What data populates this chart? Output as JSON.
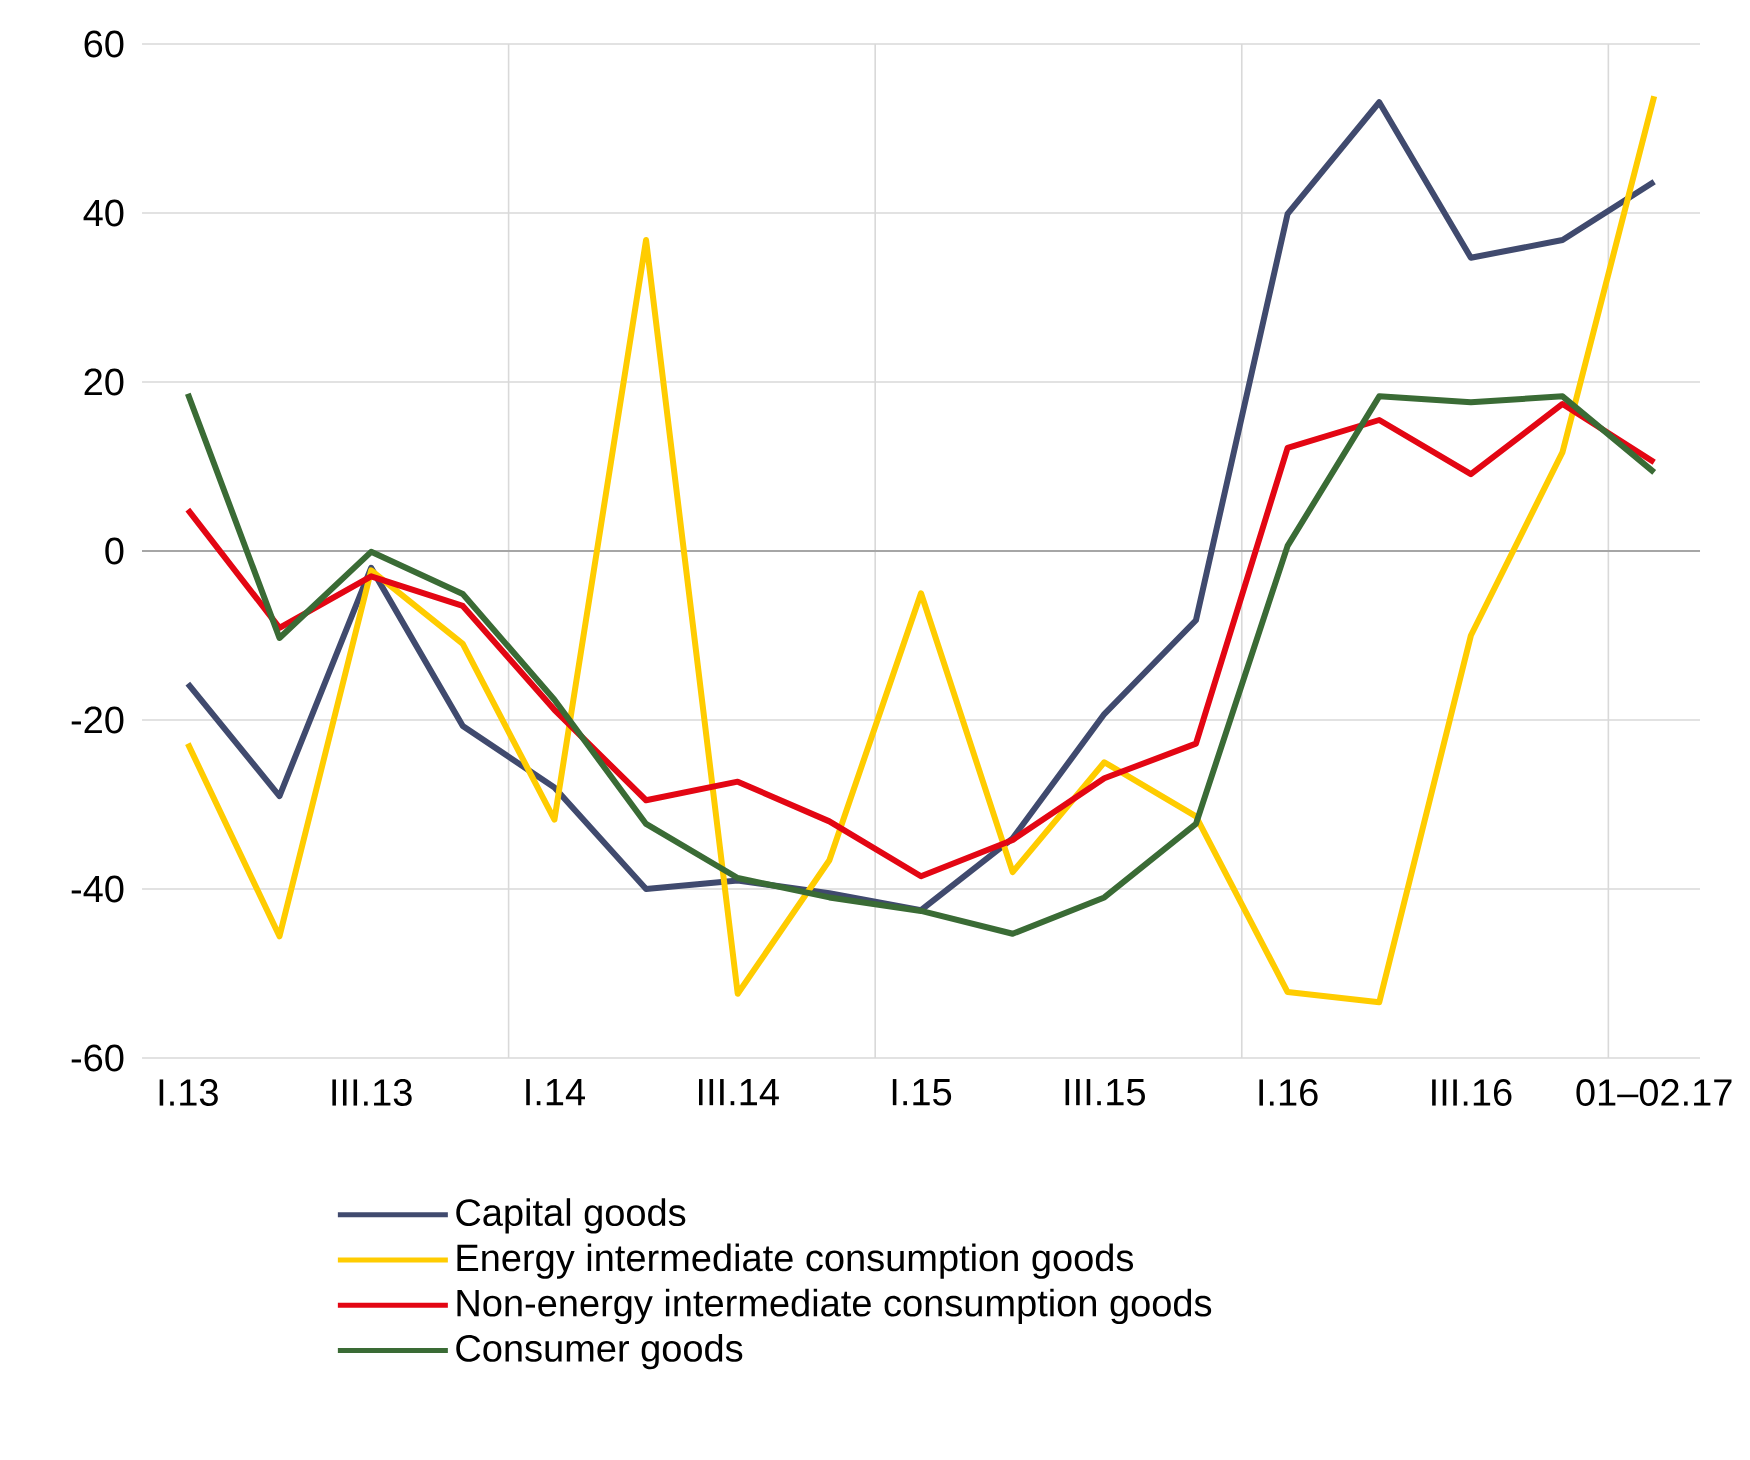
{
  "chart_data": {
    "type": "line",
    "categories": [
      "I.13",
      null,
      "III.13",
      null,
      "I.14",
      null,
      "III.14",
      null,
      "I.15",
      null,
      "III.15",
      null,
      "I.16",
      null,
      "III.16",
      null,
      "01–02.17"
    ],
    "series": [
      {
        "name": "Capital goods",
        "color": "#404a6e",
        "values": [
          -15.7,
          -29,
          -2,
          -20.7,
          -28,
          -40,
          -39,
          -40.5,
          -42.5,
          -34,
          -19.3,
          -8.2,
          39.9,
          53.1,
          34.7,
          36.8,
          43.7
        ]
      },
      {
        "name": "Energy intermediate consumption goods",
        "color": "#ffcc00",
        "values": [
          -22.8,
          -45.6,
          -2.3,
          -11,
          -31.8,
          36.8,
          -52.4,
          -36.6,
          -5,
          -38,
          -25,
          -31.4,
          -52.2,
          -53.4,
          -10,
          11.7,
          53.8
        ]
      },
      {
        "name": "Non-energy intermediate consumption goods",
        "color": "#e30613",
        "values": [
          4.9,
          -9.1,
          -3,
          -6.5,
          -18.8,
          -29.5,
          -27.3,
          -32,
          -38.5,
          -34.2,
          -26.9,
          -22.8,
          12.2,
          15.5,
          9.1,
          17.4,
          10.5
        ]
      },
      {
        "name": "Consumer goods",
        "color": "#3a6b35",
        "values": [
          18.6,
          -10.3,
          -0.1,
          -5.1,
          -17.6,
          -32.3,
          -38.7,
          -41,
          -42.6,
          -45.3,
          -41,
          -32.3,
          0.6,
          18.3,
          17.6,
          18.3,
          9.3
        ]
      }
    ],
    "ylim": [
      -60,
      60
    ],
    "yticks": [
      -60,
      -40,
      -20,
      0,
      20,
      40,
      60
    ],
    "grid": true,
    "legend": "bottom",
    "line_style": "solid",
    "marker": "none"
  }
}
